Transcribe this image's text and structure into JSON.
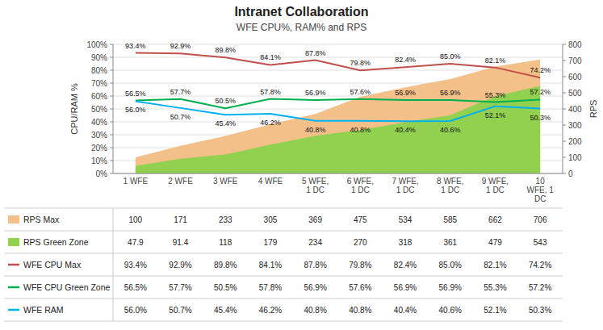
{
  "chart_data": {
    "type": "line",
    "title": "Intranet Collaboration",
    "subtitle": "WFE CPU%, RAM% and RPS",
    "categories": [
      "1 WFE",
      "2 WFE",
      "3 WFE",
      "4 WFE",
      "5 WFE,\n1 DC",
      "6 WFE,\n1 DC",
      "7 WFE,\n1 DC",
      "8 WFE,\n1 DC",
      "9 WFE,\n1 DC",
      "10\nWFE, 1\nDC"
    ],
    "y_label": "CPU/RAM %",
    "y2_label": "RPS",
    "ylim": [
      0,
      100
    ],
    "yticks": [
      {
        "value": 0,
        "label": "0%"
      },
      {
        "value": 10,
        "label": "10%"
      },
      {
        "value": 20,
        "label": "20%"
      },
      {
        "value": 30,
        "label": "30%"
      },
      {
        "value": 40,
        "label": "40%"
      },
      {
        "value": 50,
        "label": "50%"
      },
      {
        "value": 60,
        "label": "60%"
      },
      {
        "value": 70,
        "label": "70%"
      },
      {
        "value": 80,
        "label": "80%"
      },
      {
        "value": 90,
        "label": "90%"
      },
      {
        "value": 100,
        "label": "100%"
      }
    ],
    "y2lim": [
      0,
      800
    ],
    "y2ticks": [
      0,
      100,
      200,
      300,
      400,
      500,
      600,
      700,
      800
    ],
    "grid": true,
    "legend": "bottom",
    "series": [
      {
        "name": "RPS Max",
        "type": "area",
        "axis": "y2",
        "color": "#F4C08A",
        "values": [
          100,
          171,
          233,
          305,
          369,
          475,
          534,
          585,
          662,
          706
        ]
      },
      {
        "name": "RPS Green Zone",
        "type": "area",
        "axis": "y2",
        "color": "#92D050",
        "values": [
          47.9,
          91.4,
          118,
          179,
          234,
          270,
          318,
          361,
          479,
          543
        ]
      },
      {
        "name": "WFE CPU Max",
        "type": "line",
        "color": "#C0504D",
        "data_labels": true,
        "values": [
          93.4,
          92.9,
          89.8,
          84.1,
          87.8,
          79.8,
          82.4,
          85.0,
          82.1,
          74.2
        ],
        "value_labels": [
          "93.4%",
          "92.9%",
          "89.8%",
          "84.1%",
          "87.8%",
          "79.8%",
          "82.4%",
          "85.0%",
          "82.1%",
          "74.2%"
        ]
      },
      {
        "name": "WFE CPU Green Zone",
        "type": "line",
        "color": "#00B050",
        "data_labels": true,
        "values": [
          56.5,
          57.7,
          50.5,
          57.8,
          56.9,
          57.6,
          56.9,
          56.9,
          55.3,
          57.2
        ],
        "value_labels": [
          "56.5%",
          "57.7%",
          "50.5%",
          "57.8%",
          "56.9%",
          "57.6%",
          "56.9%",
          "56.9%",
          "55.3%",
          "57.2%"
        ]
      },
      {
        "name": "WFE RAM",
        "type": "line",
        "color": "#00B0F0",
        "data_labels": true,
        "values": [
          56.0,
          50.7,
          45.4,
          46.2,
          40.8,
          40.8,
          40.4,
          40.6,
          52.1,
          50.3
        ],
        "value_labels": [
          "56.0%",
          "50.7%",
          "45.4%",
          "46.2%",
          "40.8%",
          "40.8%",
          "40.4%",
          "40.6%",
          "52.1%",
          "50.3%"
        ]
      }
    ]
  }
}
